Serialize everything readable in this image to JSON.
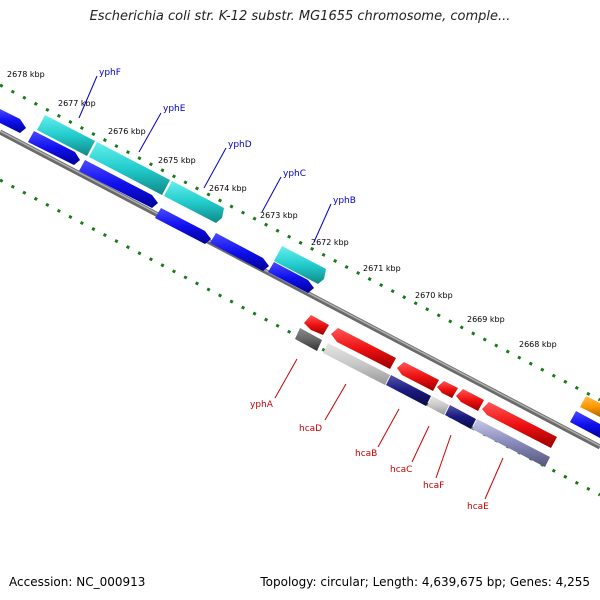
{
  "title": "Escherichia coli str. K-12 substr. MG1655 chromosome, comple...",
  "footer": {
    "accession": "Accession: NC_000913",
    "topology": "Topology: circular; Length: 4,639,675 bp; Genes: 4,255"
  },
  "scale_labels": [
    "2678 kbp",
    "2677 kbp",
    "2676 kbp",
    "2675 kbp",
    "2674 kbp",
    "2673 kbp",
    "2672 kbp",
    "2671 kbp",
    "2670 kbp",
    "2669 kbp",
    "2668 kbp"
  ],
  "top_gene_labels": [
    "yphF",
    "yphE",
    "yphD",
    "yphC",
    "yphB"
  ],
  "bottom_gene_labels": [
    "yphA",
    "hcaD",
    "hcaB",
    "hcaC",
    "hcaF",
    "hcaE"
  ],
  "colors": {
    "forward_gene": "#1010ee",
    "cds_teal": "#22cccc",
    "reverse_gene": "#ee1111",
    "backbone": "#808080",
    "ticks": "#1a7a1a",
    "other_gene": "#ff9900",
    "dark_blue": "#1a1a80"
  }
}
